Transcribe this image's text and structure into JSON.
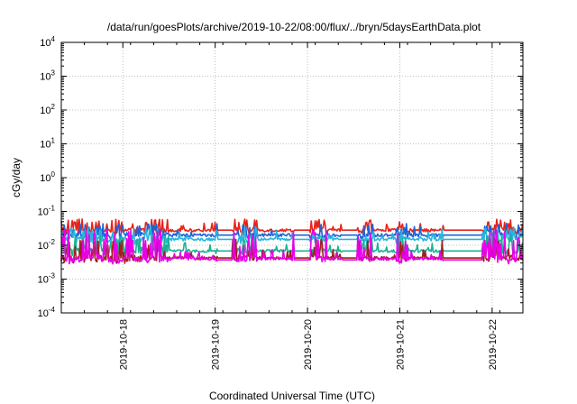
{
  "chart_data": {
    "type": "line",
    "title": "/data/run/goesPlots/archive/2019-10-22/08:00/flux/../bryn/5daysEarthData.plot",
    "xlabel": "Coordinated Universal Time (UTC)",
    "ylabel": "cGy/day",
    "yscale": "log",
    "ylim": [
      0.0001,
      10000
    ],
    "xlim": [
      "2019-10-17 08:00",
      "2019-10-22 08:00"
    ],
    "grid": true,
    "legend": "none",
    "y_ticks": [
      {
        "value": 0.0001,
        "base": "10",
        "exp": "-4"
      },
      {
        "value": 0.001,
        "base": "10",
        "exp": "-3"
      },
      {
        "value": 0.01,
        "base": "10",
        "exp": "-2"
      },
      {
        "value": 0.1,
        "base": "10",
        "exp": "-1"
      },
      {
        "value": 1,
        "base": "10",
        "exp": "0"
      },
      {
        "value": 10,
        "base": "10",
        "exp": "1"
      },
      {
        "value": 100,
        "base": "10",
        "exp": "2"
      },
      {
        "value": 1000,
        "base": "10",
        "exp": "3"
      },
      {
        "value": 10000,
        "base": "10",
        "exp": "4"
      }
    ],
    "x_ticks": [
      {
        "label": "2019-10-18",
        "value": "2019-10-18 00:00"
      },
      {
        "label": "2019-10-19",
        "value": "2019-10-19 00:00"
      },
      {
        "label": "2019-10-20",
        "value": "2019-10-20 00:00"
      },
      {
        "label": "2019-10-21",
        "value": "2019-10-21 00:00"
      },
      {
        "label": "2019-10-22",
        "value": "2019-10-22 00:00"
      }
    ],
    "series": [
      {
        "color": "#e8231a",
        "baseline": 0.028,
        "spike_max": 0.06,
        "gap_value": 0.028
      },
      {
        "color": "#1f63d6",
        "baseline": 0.02,
        "spike_max": 0.045,
        "gap_value": 0.02
      },
      {
        "color": "#27b5e0",
        "baseline": 0.015,
        "spike_max": 0.035,
        "gap_value": 0.015
      },
      {
        "color": "#1ab394",
        "baseline": 0.0068,
        "spike_max": 0.02,
        "gap_value": 0.0068
      },
      {
        "color": "#a12020",
        "baseline": 0.0042,
        "spike_max": 0.015,
        "gap_value": 0.0042
      },
      {
        "color": "#e900e9",
        "baseline": 0.004,
        "spike_max": 0.03,
        "gap_value": 0.0037
      }
    ],
    "quiet_intervals": [
      [
        "2019-10-18 12:00",
        "2019-10-19 00:00"
      ],
      [
        "2019-10-19 11:00",
        "2019-10-19 20:00"
      ],
      [
        "2019-10-20 05:00",
        "2019-10-20 09:00"
      ],
      [
        "2019-10-20 17:00",
        "2019-10-20 23:00"
      ],
      [
        "2019-10-21 02:00",
        "2019-10-21 11:00"
      ]
    ],
    "flat_intervals": [
      [
        "2019-10-19 00:30",
        "2019-10-19 04:30"
      ],
      [
        "2019-10-19 20:30",
        "2019-10-20 00:30"
      ],
      [
        "2019-10-20 09:00",
        "2019-10-20 13:00"
      ],
      [
        "2019-10-21 11:30",
        "2019-10-21 21:30"
      ]
    ]
  }
}
